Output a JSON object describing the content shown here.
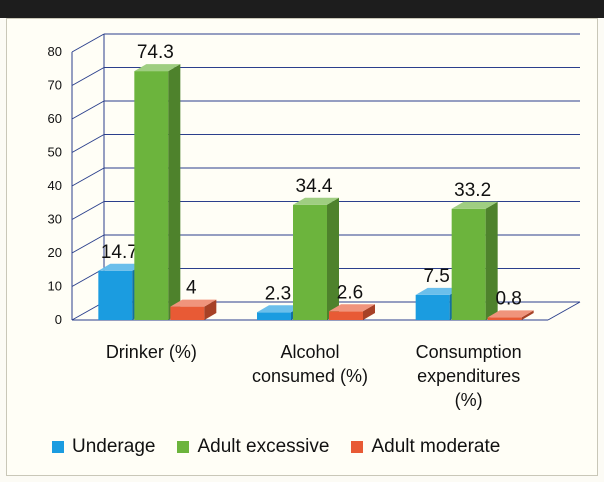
{
  "chart_data": {
    "type": "bar",
    "title": "",
    "xlabel": "",
    "ylabel": "",
    "categories": [
      "Drinker (%)",
      "Alcohol consumed (%)",
      "Consumption expenditures (%)"
    ],
    "category_label_lines": [
      [
        "Drinker (%)"
      ],
      [
        "Alcohol",
        "consumed (%)"
      ],
      [
        "Consumption",
        "expenditures",
        "(%)"
      ]
    ],
    "series": [
      {
        "name": "Underage",
        "values": [
          14.7,
          2.3,
          7.5
        ],
        "labels": [
          "14.7",
          "2.3",
          "7.5"
        ],
        "color": "#1b9ce0"
      },
      {
        "name": "Adult excessive",
        "values": [
          74.3,
          34.4,
          33.2
        ],
        "labels": [
          "74.3",
          "34.4",
          "33.2"
        ],
        "color": "#6cb43d"
      },
      {
        "name": "Adult moderate",
        "values": [
          4,
          2.6,
          0.8
        ],
        "labels": [
          "4",
          "2.6",
          "0.8"
        ],
        "color": "#e85a35"
      }
    ],
    "ylim": [
      0,
      80
    ],
    "yticks": [
      "0",
      "10",
      "20",
      "30",
      "40",
      "50",
      "60",
      "70",
      "80"
    ],
    "grid": true,
    "legend_position": "bottom",
    "style": "3d-column"
  }
}
